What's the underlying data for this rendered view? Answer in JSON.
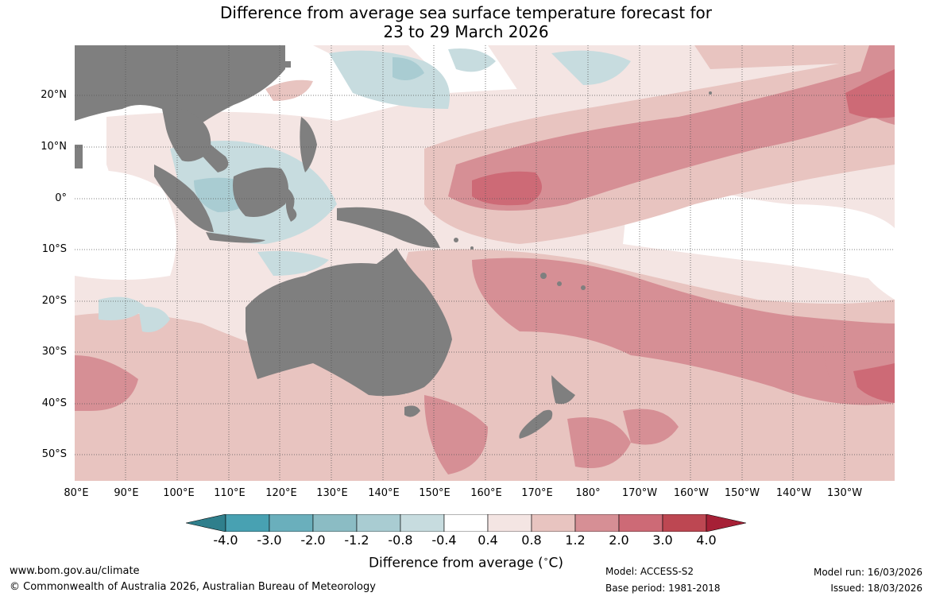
{
  "title": {
    "line1": "Difference from average sea surface temperature forecast for",
    "line2": "23 to 29 March 2026"
  },
  "map": {
    "lat_labels": [
      "20°N",
      "10°N",
      "0°",
      "10°S",
      "20°S",
      "30°S",
      "40°S",
      "50°S"
    ],
    "lon_labels": [
      "80°E",
      "90°E",
      "100°E",
      "110°E",
      "120°E",
      "130°E",
      "140°E",
      "150°E",
      "160°E",
      "170°E",
      "180°",
      "170°W",
      "160°W",
      "150°W",
      "140°W",
      "130°W"
    ]
  },
  "colorbar": {
    "labels": [
      "-4.0",
      "-3.0",
      "-2.0",
      "-1.2",
      "-0.8",
      "-0.4",
      "0.4",
      "0.8",
      "1.2",
      "2.0",
      "3.0",
      "4.0"
    ],
    "colors": [
      "#48a1b2",
      "#6aafbc",
      "#8bbcc4",
      "#a9ccd2",
      "#c7dcdf",
      "#ffffff",
      "#f4e5e3",
      "#e8c4c0",
      "#d68f95",
      "#cd6a76",
      "#bd4752"
    ],
    "low_end_color": "#2f7f8c",
    "high_end_color": "#a62036",
    "title": "Difference from average (",
    "unit": "C)",
    "degree": "∘"
  },
  "colors": {
    "land": "#7f7f7f",
    "warm1": "#f4e5e3",
    "warm2": "#e8c4c0",
    "warm3": "#d68f95",
    "warm4": "#cd6a76",
    "cool1": "#c7dcdf",
    "cool2": "#a9ccd2"
  },
  "footer": {
    "url": "www.bom.gov.au/climate",
    "copyright": "© Commonwealth of Australia 2026, Australian Bureau of Meteorology",
    "model": "Model: ACCESS-S2",
    "base_period": "Base period: 1981-2018",
    "model_run": "Model run: 16/03/2026",
    "issued": "Issued: 18/03/2026"
  }
}
